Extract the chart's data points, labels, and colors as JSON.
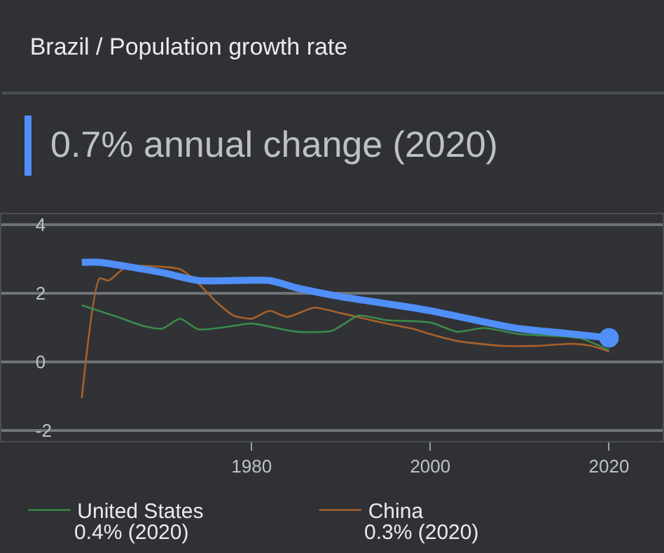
{
  "chart_data": {
    "type": "line",
    "title": "Brazil / Population growth rate",
    "subtitle": "0.7% annual change (2020)",
    "xlim": [
      1952,
      2026
    ],
    "xticks": [
      1980,
      2000,
      2020
    ],
    "ylim": [
      -2.3,
      4.3
    ],
    "yticks": [
      -2,
      0,
      2,
      4
    ],
    "grid": "y",
    "legend": "bottom",
    "marker": "none",
    "annotations": [
      "0.4% (2020)",
      "0.3% (2020)"
    ],
    "series": [
      {
        "type": "scatter",
        "color": "#4f8ff7",
        "marker": "circle",
        "x": [
          2020
        ],
        "values": [
          0.7
        ]
      },
      {
        "color": "#4f8ff7",
        "x": [
          1961,
          1963,
          1970,
          1974,
          1982,
          1985,
          1990,
          1995,
          1998,
          2000,
          2005,
          2010,
          2015,
          2020
        ],
        "values": [
          2.9,
          2.9,
          2.6,
          2.37,
          2.37,
          2.16,
          1.9,
          1.7,
          1.58,
          1.49,
          1.22,
          0.97,
          0.84,
          0.7
        ]
      },
      {
        "name": "United States",
        "color": "#3a8a4c",
        "x": [
          1961,
          1965,
          1968,
          1970,
          1972,
          1974,
          1977,
          1980,
          1985,
          1989,
          1992,
          1995,
          2000,
          2003,
          2006,
          2010,
          2015,
          2017,
          2020
        ],
        "values": [
          1.65,
          1.31,
          1.04,
          0.97,
          1.26,
          0.95,
          1.01,
          1.12,
          0.88,
          0.91,
          1.35,
          1.22,
          1.15,
          0.88,
          0.99,
          0.81,
          0.74,
          0.68,
          0.34
        ]
      },
      {
        "name": "China",
        "color": "#a8612a",
        "x": [
          1961,
          1963,
          1964,
          1966,
          1970,
          1972,
          1974,
          1976,
          1978,
          1980,
          1982,
          1984,
          1987,
          1990,
          1995,
          1998,
          2000,
          2003,
          2008,
          2012,
          2016,
          2018,
          2020
        ],
        "values": [
          -1.05,
          2.43,
          2.37,
          2.77,
          2.77,
          2.7,
          2.3,
          1.76,
          1.35,
          1.26,
          1.49,
          1.31,
          1.58,
          1.42,
          1.12,
          0.97,
          0.81,
          0.61,
          0.47,
          0.47,
          0.53,
          0.47,
          0.3
        ]
      }
    ]
  }
}
